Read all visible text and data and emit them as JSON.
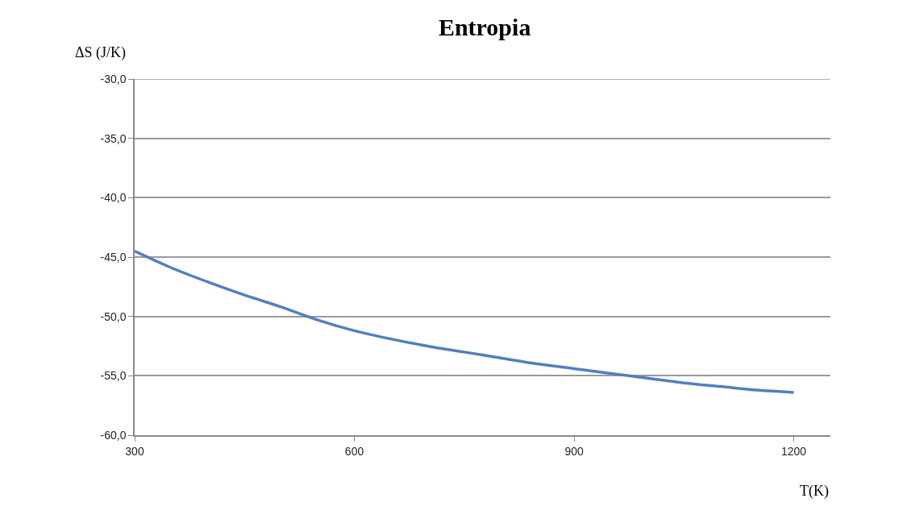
{
  "chart_data": {
    "type": "line",
    "title": "Entropia",
    "xlabel": "T(K)",
    "ylabel": "ΔS (J/K)",
    "x": [
      300,
      350,
      400,
      450,
      500,
      550,
      600,
      650,
      700,
      750,
      800,
      850,
      900,
      950,
      1000,
      1050,
      1100,
      1150,
      1200
    ],
    "series": [
      {
        "color": "#4f81bd",
        "values": [
          -44.5,
          -45.9,
          -47.1,
          -48.2,
          -49.2,
          -50.3,
          -51.2,
          -51.9,
          -52.5,
          -53.0,
          -53.5,
          -54.0,
          -54.4,
          -54.8,
          -55.2,
          -55.6,
          -55.9,
          -56.2,
          -56.4
        ]
      }
    ],
    "xlim": [
      300,
      1250
    ],
    "xticks": [
      300,
      600,
      900,
      1200
    ],
    "ylim": [
      -60,
      -30
    ],
    "yticks": [
      {
        "value": -30,
        "label": "-30,0"
      },
      {
        "value": -35,
        "label": "-35,0"
      },
      {
        "value": -40,
        "label": "-40,0"
      },
      {
        "value": -45,
        "label": "-45,0"
      },
      {
        "value": -50,
        "label": "-50,0"
      },
      {
        "value": -55,
        "label": "-55,0"
      },
      {
        "value": -60,
        "label": "-60,0"
      }
    ],
    "grid": "y",
    "marker": "none",
    "line_style": "solid"
  }
}
